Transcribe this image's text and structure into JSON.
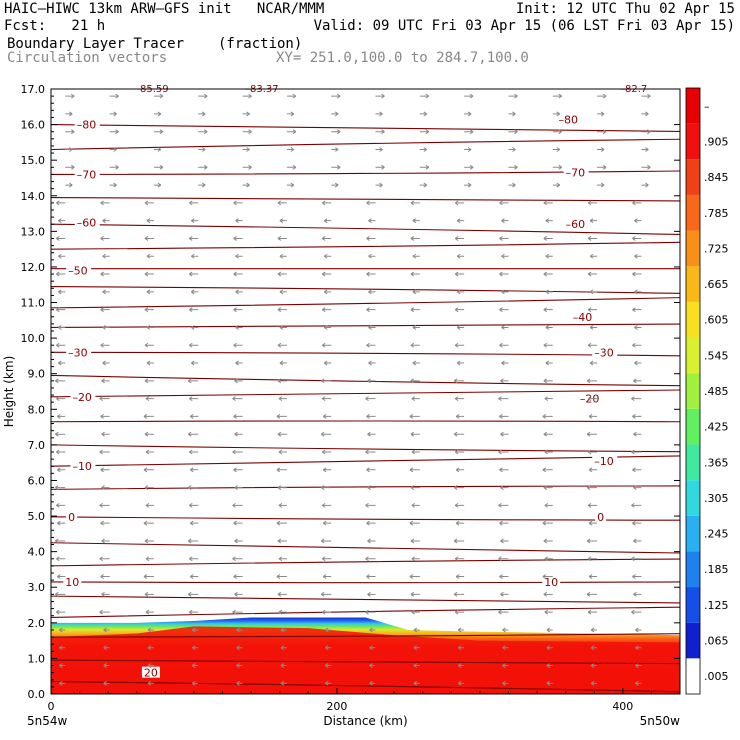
{
  "header": {
    "model": "HAIC–HIWC 13km ARW–GFS init   NCAR/MMM",
    "init": "Init: 12 UTC Thu 02 Apr 15",
    "fcst": "Fcst:   21 h",
    "valid": "Valid: 09 UTC Fri 03 Apr 15 (06 LST Fri 03 Apr 15)",
    "field": "Boundary Layer Tracer",
    "units": "(fraction)",
    "vectors": "Circulation vectors",
    "xy": "XY= 251.0,100.0 to 284.7,100.0"
  },
  "chart_data": {
    "type": "heatmap",
    "xlabel": "Distance (km)",
    "ylabel": "Height (km)",
    "xlim": [
      0,
      440
    ],
    "ylim": [
      0.0,
      17.0
    ],
    "x_ticks": [
      "0",
      "200",
      "400"
    ],
    "x_tick_values": [
      0,
      200,
      400
    ],
    "x_end_labels": {
      "left": "5n54w",
      "right": "5n50w"
    },
    "y_ticks": [
      "0.0",
      "1.0",
      "2.0",
      "3.0",
      "4.0",
      "5.0",
      "6.0",
      "7.0",
      "8.0",
      "9.0",
      "10.0",
      "11.0",
      "12.0",
      "13.0",
      "14.0",
      "15.0",
      "16.0",
      "17.0"
    ],
    "y_tick_values": [
      0,
      1,
      2,
      3,
      4,
      5,
      6,
      7,
      8,
      9,
      10,
      11,
      12,
      13,
      14,
      15,
      16,
      17
    ],
    "colorbar": {
      "labels": [
        ".005",
        ".065",
        ".125",
        ".185",
        ".245",
        ".305",
        ".365",
        ".425",
        ".485",
        ".545",
        ".605",
        ".665",
        ".725",
        ".785",
        ".845",
        ".905",
        "–"
      ],
      "colors": [
        "#ffffff",
        "#1020d0",
        "#1450e8",
        "#2080f0",
        "#28b0f0",
        "#30d8e0",
        "#40e8a0",
        "#60f060",
        "#a0f040",
        "#d8f030",
        "#f8e020",
        "#f8b818",
        "#f89018",
        "#f86818",
        "#f04018",
        "#f01010",
        "#e80000"
      ]
    },
    "isotherm_labels": [
      {
        "label": "–80",
        "x_km": 18,
        "y_km": 16.0
      },
      {
        "label": "–80",
        "x_km": 355,
        "y_km": 16.15
      },
      {
        "label": "–70",
        "x_km": 18,
        "y_km": 14.6
      },
      {
        "label": "–70",
        "x_km": 360,
        "y_km": 14.65
      },
      {
        "label": "–60",
        "x_km": 18,
        "y_km": 13.25
      },
      {
        "label": "–60",
        "x_km": 360,
        "y_km": 13.2
      },
      {
        "label": "–50",
        "x_km": 12,
        "y_km": 11.9
      },
      {
        "label": "–40",
        "x_km": 365,
        "y_km": 10.6
      },
      {
        "label": "–30",
        "x_km": 12,
        "y_km": 9.6
      },
      {
        "label": "–30",
        "x_km": 380,
        "y_km": 9.6
      },
      {
        "label": "–20",
        "x_km": 15,
        "y_km": 8.35
      },
      {
        "label": "–20",
        "x_km": 370,
        "y_km": 8.3
      },
      {
        "label": "–10",
        "x_km": 15,
        "y_km": 6.4
      },
      {
        "label": "–10",
        "x_km": 380,
        "y_km": 6.55
      },
      {
        "label": "0",
        "x_km": 12,
        "y_km": 4.98
      },
      {
        "label": "0",
        "x_km": 382,
        "y_km": 4.98
      },
      {
        "label": "10",
        "x_km": 10,
        "y_km": 3.15
      },
      {
        "label": "10",
        "x_km": 345,
        "y_km": 3.15
      },
      {
        "label": "20",
        "x_km": 65,
        "y_km": 0.6
      }
    ],
    "isotherm_levels_km": [
      0.35,
      0.95,
      1.6,
      2.15,
      2.75,
      3.15,
      3.6,
      4.25,
      4.98,
      5.75,
      6.4,
      7.0,
      7.65,
      8.35,
      8.95,
      9.6,
      10.3,
      10.85,
      11.45,
      11.95,
      12.5,
      13.2,
      13.95,
      14.6,
      15.3,
      16.0
    ],
    "top_labels": [
      "85.59",
      "–83.37",
      "–82.7"
    ],
    "bl_tracer": {
      "top_km": [
        [
          0,
          2.0
        ],
        [
          60,
          2.0
        ],
        [
          100,
          2.05
        ],
        [
          140,
          2.15
        ],
        [
          220,
          2.15
        ],
        [
          250,
          1.8
        ],
        [
          300,
          1.75
        ],
        [
          380,
          1.7
        ],
        [
          440,
          1.65
        ]
      ],
      "full_km": [
        [
          0,
          1.6
        ],
        [
          60,
          1.7
        ],
        [
          100,
          1.9
        ],
        [
          180,
          1.85
        ],
        [
          240,
          1.65
        ],
        [
          300,
          1.5
        ],
        [
          440,
          1.45
        ]
      ]
    }
  }
}
